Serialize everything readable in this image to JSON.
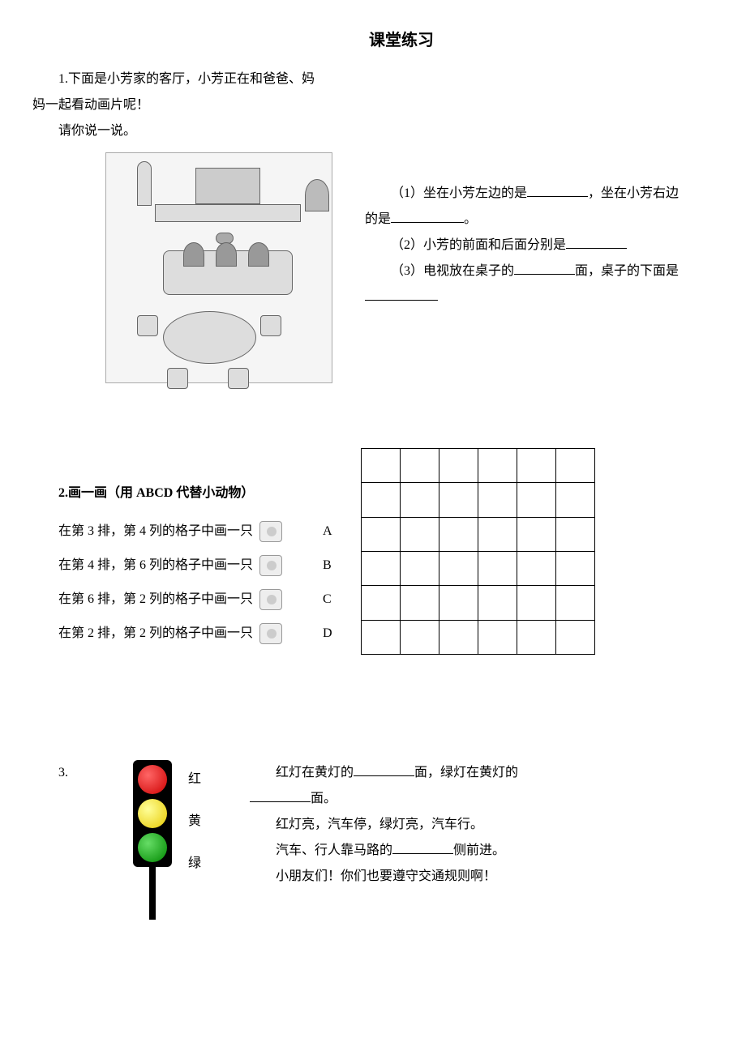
{
  "title": "课堂练习",
  "q1": {
    "intro_line1": "1.下面是小芳家的客厅，小芳正在和爸爸、妈",
    "intro_line2": "妈一起看动画片呢！",
    "intro_line3": "请你说一说。",
    "sub1_a": "（1）坐在小芳左边的是",
    "sub1_b": "，坐在小芳右边",
    "sub1_c": "的是",
    "sub1_d": "。",
    "sub2": "（2）小芳的前面和后面分别是",
    "sub3_a": "（3）电视放在桌子的",
    "sub3_b": "面，桌子的下面是"
  },
  "q2": {
    "title": "2.画一画（用 ABCD 代替小动物）",
    "items": [
      {
        "text": "在第 3 排，第 4 列的格子中画一只",
        "letter": "A"
      },
      {
        "text": "在第 4 排，第 6 列的格子中画一只",
        "letter": "B"
      },
      {
        "text": "在第 6 排，第 2 列的格子中画一只",
        "letter": "C"
      },
      {
        "text": "在第 2 排，第 2 列的格子中画一只",
        "letter": "D"
      }
    ],
    "grid_rows": 6,
    "grid_cols": 6
  },
  "q3": {
    "num": "3.",
    "labels": {
      "red": "红",
      "yellow": "黄",
      "green": "绿"
    },
    "colors": {
      "red": "#cc0000",
      "yellow": "#e6c800",
      "green": "#008800"
    },
    "line1_a": "红灯在黄灯的",
    "line1_b": "面，绿灯在黄灯的",
    "line2": "面。",
    "line3": "红灯亮，汽车停，绿灯亮，汽车行。",
    "line4_a": "汽车、行人靠马路的",
    "line4_b": "侧前进。",
    "line5": "小朋友们！你们也要遵守交通规则啊！"
  }
}
